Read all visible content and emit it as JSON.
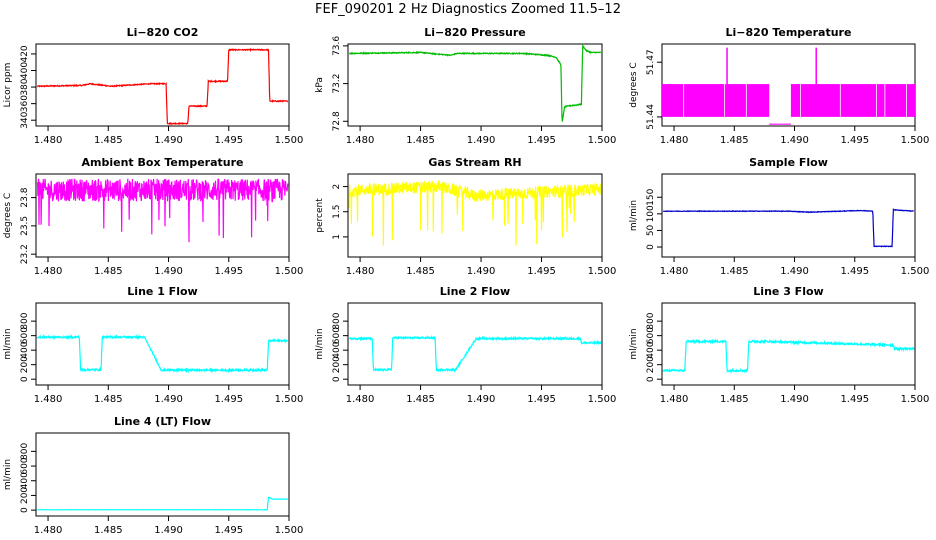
{
  "page": {
    "title": "FEF_090201  2 Hz Diagnostics Zoomed 11.5–12"
  },
  "chart_data": [
    {
      "type": "line",
      "title": "Li−820 CO2",
      "xlabel": "",
      "ylabel": "Licor ppm",
      "color": "#ff0000",
      "xlim": [
        1.479,
        1.5
      ],
      "ylim": [
        333,
        432
      ],
      "yticks": [
        340,
        360,
        380,
        400,
        420
      ],
      "noise": 0.6,
      "x": [
        1.479,
        1.4828,
        1.4835,
        1.4852,
        1.4885,
        1.4898,
        1.4899,
        1.4916,
        1.4917,
        1.4932,
        1.4933,
        1.4949,
        1.495,
        1.4983,
        1.4984,
        1.5
      ],
      "y": [
        381,
        382,
        384,
        381,
        384,
        384,
        336,
        336,
        357,
        357,
        387,
        387,
        425,
        425,
        363,
        363
      ],
      "xticks": [
        1.48,
        1.485,
        1.49,
        1.495,
        1.5
      ]
    },
    {
      "type": "line",
      "title": "Li−820 Pressure",
      "xlabel": "",
      "ylabel": "kPa",
      "color": "#00bb00",
      "xlim": [
        1.479,
        1.5
      ],
      "ylim": [
        72.75,
        73.62
      ],
      "yticks": [
        72.8,
        73.2,
        73.6
      ],
      "noise": 0.005,
      "x": [
        1.479,
        1.485,
        1.4875,
        1.488,
        1.4935,
        1.4955,
        1.4962,
        1.4966,
        1.4967,
        1.4969,
        1.4971,
        1.4983,
        1.4984,
        1.4987,
        1.4991,
        1.5
      ],
      "y": [
        73.52,
        73.53,
        73.5,
        73.52,
        73.52,
        73.5,
        73.48,
        73.4,
        72.78,
        72.95,
        72.96,
        72.98,
        73.6,
        73.55,
        73.53,
        73.53
      ],
      "xticks": [
        1.48,
        1.485,
        1.49,
        1.495,
        1.5
      ]
    },
    {
      "type": "line",
      "title": "Li−820 Temperature",
      "xlabel": "",
      "ylabel": "degrees C",
      "color": "#ff00ff",
      "xlim": [
        1.479,
        1.5
      ],
      "ylim": [
        51.435,
        51.48
      ],
      "yticks": [
        51.44,
        51.47
      ],
      "noise": 0,
      "band": true,
      "x": [
        1.479,
        1.4879,
        1.4897,
        1.5
      ],
      "y": [
        51.458,
        51.458,
        51.458,
        51.458
      ],
      "xticks": [
        1.48,
        1.485,
        1.49,
        1.495,
        1.5
      ]
    },
    {
      "type": "line",
      "title": "Ambient Box Temperature",
      "xlabel": "",
      "ylabel": "degrees C",
      "color": "#ff00ff",
      "xlim": [
        1.479,
        1.5
      ],
      "ylim": [
        23.17,
        24.05
      ],
      "yticks": [
        23.2,
        23.5,
        23.8
      ],
      "noise": 0.12,
      "x": [
        1.479,
        1.4879,
        1.4887,
        1.5
      ],
      "y": [
        23.88,
        23.88,
        23.88,
        23.88
      ],
      "xticks": [
        1.48,
        1.485,
        1.49,
        1.495,
        1.5
      ]
    },
    {
      "type": "line",
      "title": "Gas Stream RH",
      "xlabel": "",
      "ylabel": "percent",
      "color": "#ffff00",
      "xlim": [
        1.479,
        1.5
      ],
      "ylim": [
        0.6,
        2.25
      ],
      "yticks": [
        1.0,
        1.5,
        2.0
      ],
      "noise": 0.12,
      "x": [
        1.479,
        1.4866,
        1.4895,
        1.5
      ],
      "y": [
        1.92,
        2.0,
        1.82,
        1.95
      ],
      "xticks": [
        1.48,
        1.485,
        1.49,
        1.495,
        1.5
      ]
    },
    {
      "type": "line",
      "title": "Sample Flow",
      "xlabel": "",
      "ylabel": "ml/min",
      "color": "#0000cc",
      "xlim": [
        1.479,
        1.5
      ],
      "ylim": [
        -30,
        220
      ],
      "yticks": [
        0,
        50,
        100,
        150
      ],
      "noise": 0.8,
      "x": [
        1.479,
        1.4895,
        1.4912,
        1.4955,
        1.4965,
        1.4966,
        1.4981,
        1.4982,
        1.5
      ],
      "y": [
        108,
        108,
        105,
        110,
        108,
        2,
        2,
        112,
        108
      ],
      "xticks": [
        1.48,
        1.485,
        1.49,
        1.495,
        1.5
      ]
    },
    {
      "type": "line",
      "title": "Line 1 Flow",
      "xlabel": "",
      "ylabel": "ml/min",
      "color": "#00ffff",
      "xlim": [
        1.479,
        1.5
      ],
      "ylim": [
        -80,
        1050
      ],
      "yticks": [
        0,
        200,
        400,
        600,
        800
      ],
      "noise": 12,
      "x": [
        1.479,
        1.4826,
        1.4827,
        1.4844,
        1.4845,
        1.488,
        1.4894,
        1.4982,
        1.4983,
        1.5
      ],
      "y": [
        580,
        580,
        130,
        130,
        580,
        580,
        125,
        125,
        530,
        530
      ],
      "xticks": [
        1.48,
        1.485,
        1.49,
        1.495,
        1.5
      ]
    },
    {
      "type": "line",
      "title": "Line 2 Flow",
      "xlabel": "",
      "ylabel": "ml/min",
      "color": "#00ffff",
      "xlim": [
        1.479,
        1.5
      ],
      "ylim": [
        -80,
        1050
      ],
      "yticks": [
        0,
        200,
        400,
        600,
        800
      ],
      "noise": 12,
      "x": [
        1.479,
        1.481,
        1.4811,
        1.4826,
        1.4827,
        1.4862,
        1.4863,
        1.4879,
        1.4896,
        1.4982,
        1.4983,
        1.5
      ],
      "y": [
        560,
        560,
        130,
        130,
        570,
        570,
        130,
        130,
        560,
        560,
        500,
        500
      ],
      "xticks": [
        1.48,
        1.485,
        1.49,
        1.495,
        1.5
      ]
    },
    {
      "type": "line",
      "title": "Line 3 Flow",
      "xlabel": "",
      "ylabel": "ml/min",
      "color": "#00ffff",
      "xlim": [
        1.479,
        1.5
      ],
      "ylim": [
        -80,
        1050
      ],
      "yticks": [
        0,
        200,
        400,
        600,
        800
      ],
      "noise": 14,
      "x": [
        1.479,
        1.4809,
        1.481,
        1.4843,
        1.4844,
        1.4861,
        1.4862,
        1.4875,
        1.4982,
        1.4983,
        1.5
      ],
      "y": [
        120,
        120,
        520,
        520,
        120,
        120,
        520,
        520,
        470,
        420,
        420
      ],
      "xticks": [
        1.48,
        1.485,
        1.49,
        1.495,
        1.5
      ]
    },
    {
      "type": "line",
      "title": "Line 4 (LT) Flow",
      "xlabel": "",
      "ylabel": "ml/min",
      "color": "#00ffff",
      "xlim": [
        1.479,
        1.5
      ],
      "ylim": [
        -80,
        1050
      ],
      "yticks": [
        0,
        200,
        400,
        600,
        800
      ],
      "noise": 1.5,
      "x": [
        1.479,
        1.4982,
        1.4983,
        1.4986,
        1.5
      ],
      "y": [
        5,
        5,
        180,
        150,
        150
      ],
      "xticks": [
        1.48,
        1.485,
        1.49,
        1.495,
        1.5
      ]
    }
  ]
}
